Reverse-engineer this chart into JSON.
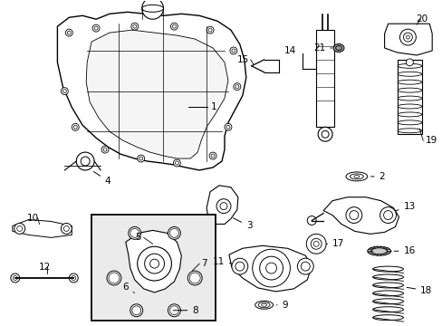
{
  "bg_color": "#ffffff",
  "line_color": "#000000",
  "box_fill": "#e8e8e8"
}
